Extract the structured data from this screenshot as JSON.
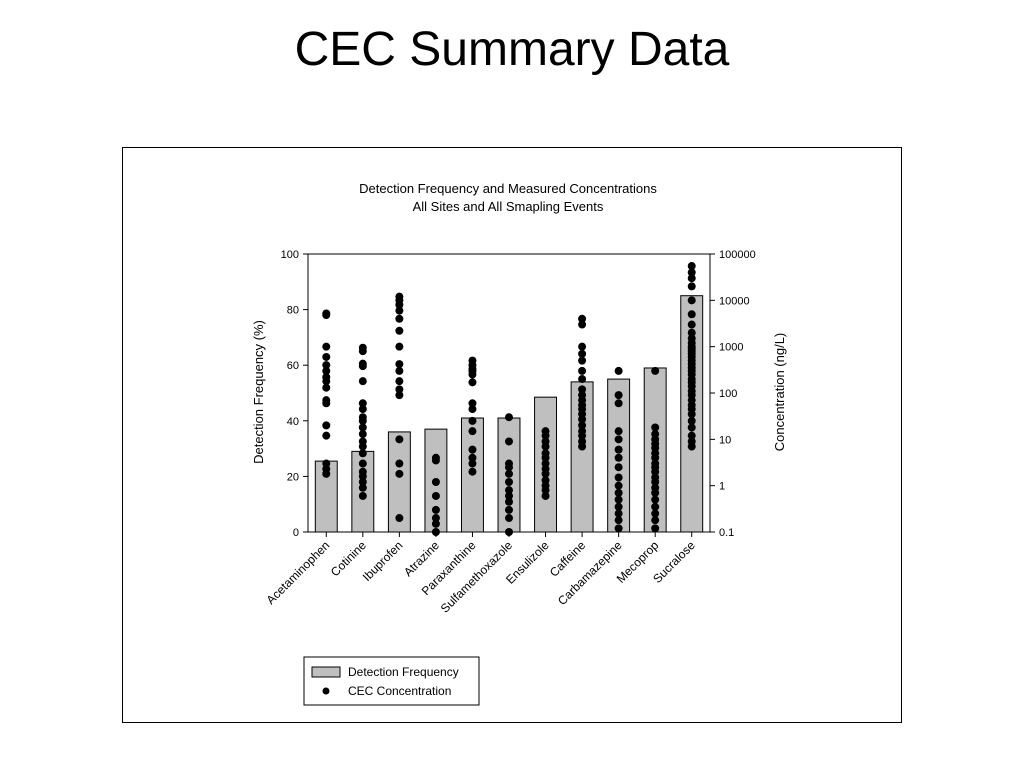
{
  "slide": {
    "title": "CEC Summary Data"
  },
  "chart_data": {
    "type": "bar",
    "title": "Detection Frequency and Measured Concentrations",
    "subtitle": "All Sites and All Smapling Events",
    "categories": [
      "Acetaminophen",
      "Cotinine",
      "Ibuprofen",
      "Atrazine",
      "Paraxanthine",
      "Sulfamethoxazole",
      "Ensulizole",
      "Caffeine",
      "Carbamazepine",
      "Mecoprop",
      "Sucralose"
    ],
    "ylabel": "Detection Frequency (%)",
    "y2label": "Concentration (ng/L)",
    "ylim": [
      0,
      100
    ],
    "y2lim": [
      0.1,
      100000
    ],
    "y2scale": "log",
    "yticks": [
      "0",
      "20",
      "40",
      "60",
      "80",
      "100"
    ],
    "y2ticks": [
      "0.1",
      "1",
      "10",
      "100",
      "1000",
      "10000",
      "100000"
    ],
    "grid": false,
    "legend_position": "bottom-left",
    "colors": {
      "bar": "#bfbfbf",
      "marker": "#000000"
    },
    "series": [
      {
        "name": "Detection Frequency",
        "type": "bar",
        "values": [
          25.5,
          29,
          36,
          37,
          41,
          41,
          48.5,
          54,
          55,
          59,
          85
        ]
      },
      {
        "name": "CEC Concentration",
        "type": "scatter",
        "axis": "y2",
        "points": [
          [
            5200,
            4800,
            1000,
            600,
            400,
            300,
            220,
            180,
            130,
            70,
            60,
            20,
            12,
            3,
            2.3,
            1.8
          ],
          [
            950,
            800,
            430,
            380,
            180,
            60,
            45,
            30,
            25,
            18,
            13,
            9,
            7,
            5,
            3,
            2,
            1.6,
            1.2,
            0.9,
            0.6
          ],
          [
            12000,
            10000,
            8000,
            6000,
            4000,
            2200,
            1000,
            420,
            300,
            180,
            120,
            90,
            10,
            3,
            1.8,
            0.2
          ],
          [
            4,
            3.5,
            1.2,
            0.6,
            0.3,
            0.2,
            0.15,
            0.1
          ],
          [
            500,
            400,
            330,
            300,
            250,
            170,
            60,
            45,
            25,
            15,
            6,
            4,
            3,
            2
          ],
          [
            30,
            9,
            3,
            2.5,
            1.8,
            1.2,
            0.8,
            0.6,
            0.45,
            0.3,
            0.2,
            0.1
          ],
          [
            15,
            12,
            9,
            7,
            5,
            4,
            3,
            2.3,
            1.8,
            1.3,
            1,
            0.8,
            0.6
          ],
          [
            4000,
            3000,
            1000,
            700,
            500,
            300,
            200,
            120,
            90,
            70,
            55,
            45,
            35,
            27,
            20,
            15,
            12,
            9,
            7
          ],
          [
            300,
            90,
            60,
            15,
            10,
            6,
            4,
            2.5,
            1.5,
            1,
            0.7,
            0.5,
            0.35,
            0.25,
            0.18,
            0.12
          ],
          [
            300,
            18,
            13,
            10,
            8,
            6.5,
            5,
            4,
            3,
            2.5,
            2,
            1.5,
            1.2,
            0.9,
            0.7,
            0.5,
            0.35,
            0.25,
            0.18,
            0.12
          ],
          [
            55000,
            40000,
            30000,
            20000,
            10000,
            5000,
            3000,
            2000,
            1500,
            1200,
            1000,
            900,
            800,
            700,
            600,
            500,
            420,
            350,
            300,
            250,
            200,
            170,
            140,
            110,
            90,
            70,
            55,
            45,
            35,
            25,
            18,
            12,
            9,
            7
          ]
        ]
      }
    ],
    "legend": [
      {
        "label": "Detection Frequency",
        "kind": "bar"
      },
      {
        "label": "CEC Concentration",
        "kind": "marker"
      }
    ]
  }
}
